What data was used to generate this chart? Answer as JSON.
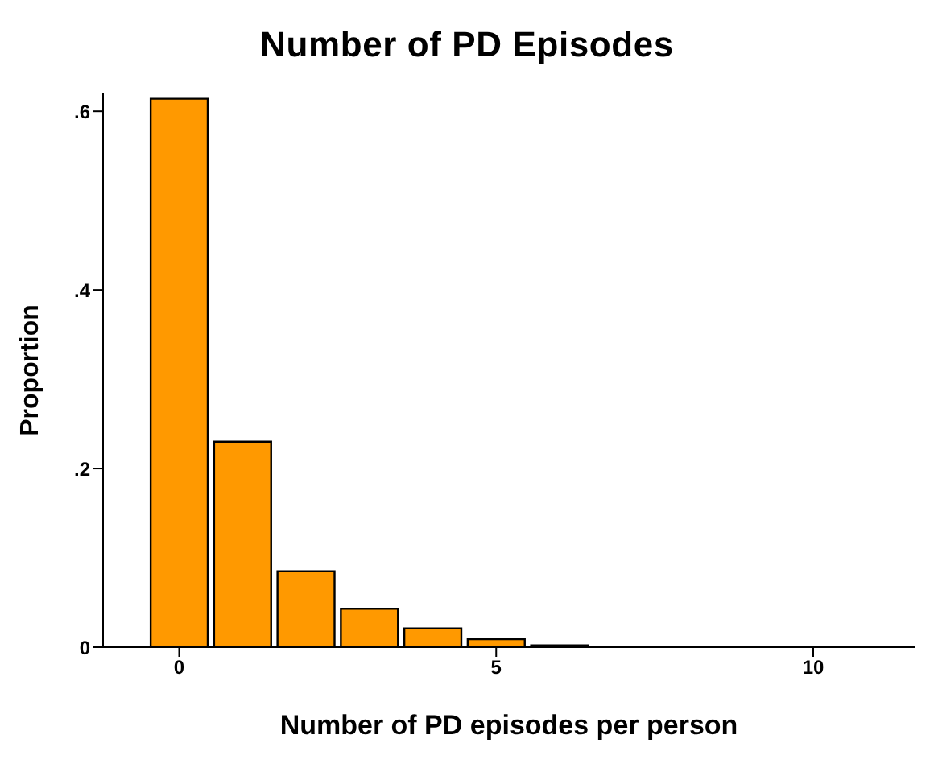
{
  "chart_data": {
    "type": "histogram",
    "title": "Number of PD Episodes",
    "xlabel": "Number of PD episodes per person",
    "ylabel": "Proportion",
    "bins": [
      -0.5,
      0.5,
      1.5,
      2.5,
      3.5,
      4.5,
      5.5,
      6.5,
      7.5,
      8.5,
      9.5,
      10.5,
      11.5
    ],
    "values": [
      0.614,
      0.23,
      0.085,
      0.043,
      0.021,
      0.009,
      0.002,
      null,
      null,
      null,
      0,
      null
    ],
    "color": "#ff9900",
    "xlim": [
      -1.2,
      11.6
    ],
    "xticks": [
      0,
      5,
      10
    ],
    "ylim": [
      0,
      0.62
    ],
    "yticks": [
      {
        "value": 0,
        "label": "0"
      },
      {
        "value": 0.2,
        "label": ".2"
      },
      {
        "value": 0.4,
        "label": ".4"
      },
      {
        "value": 0.6,
        "label": ".6"
      }
    ],
    "grid": false
  }
}
